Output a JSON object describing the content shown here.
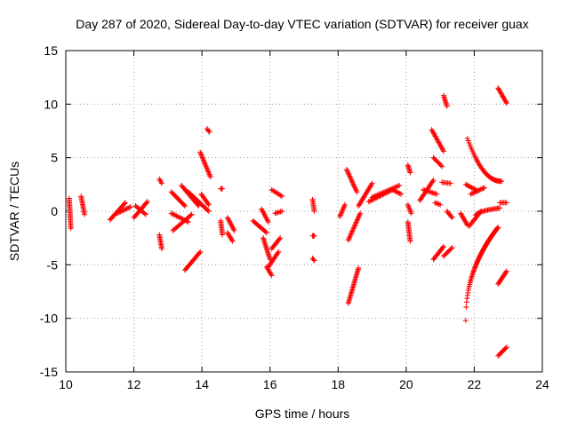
{
  "chart_data": {
    "type": "scatter",
    "title": "Day 287 of 2020, Sidereal Day-to-day VTEC variation (SDTVAR) for receiver guax",
    "xlabel": "GPS time / hours",
    "ylabel": "SDTVAR / TECUs",
    "xlim": [
      10,
      24
    ],
    "ylim": [
      -15,
      15
    ],
    "xticks": [
      10,
      12,
      14,
      16,
      18,
      20,
      22,
      24
    ],
    "yticks": [
      -15,
      -10,
      -5,
      0,
      5,
      10,
      15
    ],
    "grid": true,
    "marker": "+",
    "series_color": "#ff0000",
    "segments": [
      {
        "x0": 10.1,
        "x1": 10.15,
        "y0": 1.2,
        "y1": -1.6
      },
      {
        "x0": 10.45,
        "x1": 10.55,
        "y0": 1.4,
        "y1": -0.3
      },
      {
        "x0": 11.3,
        "x1": 11.75,
        "y0": -0.8,
        "y1": 0.8
      },
      {
        "x0": 11.5,
        "x1": 11.9,
        "y0": -0.2,
        "y1": 0.4
      },
      {
        "x0": 12.0,
        "x1": 12.4,
        "y0": -0.6,
        "y1": 0.9
      },
      {
        "x0": 12.05,
        "x1": 12.35,
        "y0": 0.5,
        "y1": -0.3
      },
      {
        "x0": 12.75,
        "x1": 12.82,
        "y0": 3.0,
        "y1": 2.6
      },
      {
        "x0": 12.75,
        "x1": 12.82,
        "y0": -2.2,
        "y1": -3.5
      },
      {
        "x0": 13.1,
        "x1": 13.5,
        "y0": 1.8,
        "y1": 0.5
      },
      {
        "x0": 13.1,
        "x1": 13.6,
        "y0": -0.2,
        "y1": -1.0
      },
      {
        "x0": 13.15,
        "x1": 13.7,
        "y0": -1.8,
        "y1": -0.3
      },
      {
        "x0": 13.4,
        "x1": 13.9,
        "y0": 2.4,
        "y1": 0.5
      },
      {
        "x0": 13.6,
        "x1": 14.2,
        "y0": 1.8,
        "y1": 0.0
      },
      {
        "x0": 13.5,
        "x1": 13.95,
        "y0": -5.5,
        "y1": -3.8
      },
      {
        "x0": 13.95,
        "x1": 14.25,
        "y0": 5.5,
        "y1": 3.2
      },
      {
        "x0": 13.98,
        "x1": 14.2,
        "y0": 1.6,
        "y1": 0.6
      },
      {
        "x0": 14.15,
        "x1": 14.22,
        "y0": 7.7,
        "y1": 7.4
      },
      {
        "x0": 14.55,
        "x1": 14.6,
        "y0": 2.1,
        "y1": 2.1
      },
      {
        "x0": 14.55,
        "x1": 14.6,
        "y0": -0.9,
        "y1": -2.2
      },
      {
        "x0": 14.75,
        "x1": 14.95,
        "y0": -0.6,
        "y1": -1.8
      },
      {
        "x0": 14.75,
        "x1": 14.9,
        "y0": -2.0,
        "y1": -2.8
      },
      {
        "x0": 15.5,
        "x1": 15.9,
        "y0": -0.9,
        "y1": -2.0
      },
      {
        "x0": 15.75,
        "x1": 15.95,
        "y0": 0.2,
        "y1": -1.0
      },
      {
        "x0": 15.8,
        "x1": 16.0,
        "y0": -2.5,
        "y1": -4.5
      },
      {
        "x0": 15.9,
        "x1": 16.05,
        "y0": -5.2,
        "y1": -6.0
      },
      {
        "x0": 15.95,
        "x1": 16.25,
        "y0": -5.2,
        "y1": -3.8
      },
      {
        "x0": 16.05,
        "x1": 16.3,
        "y0": -3.5,
        "y1": -2.5
      },
      {
        "x0": 16.05,
        "x1": 16.35,
        "y0": 2.0,
        "y1": 1.4
      },
      {
        "x0": 16.15,
        "x1": 16.35,
        "y0": -0.2,
        "y1": 0.0
      },
      {
        "x0": 17.25,
        "x1": 17.3,
        "y0": 1.1,
        "y1": 0.0
      },
      {
        "x0": 17.25,
        "x1": 17.3,
        "y0": -2.3,
        "y1": -2.3
      },
      {
        "x0": 17.25,
        "x1": 17.3,
        "y0": -4.4,
        "y1": -4.6
      },
      {
        "x0": 18.05,
        "x1": 18.2,
        "y0": -0.5,
        "y1": 0.6
      },
      {
        "x0": 18.25,
        "x1": 18.55,
        "y0": 3.9,
        "y1": 1.8
      },
      {
        "x0": 18.3,
        "x1": 18.6,
        "y0": -8.6,
        "y1": -5.3
      },
      {
        "x0": 18.3,
        "x1": 18.65,
        "y0": -2.7,
        "y1": -0.2
      },
      {
        "x0": 18.6,
        "x1": 19.0,
        "y0": 0.5,
        "y1": 2.6
      },
      {
        "x0": 18.9,
        "x1": 19.6,
        "y0": 0.9,
        "y1": 2.0
      },
      {
        "x0": 19.0,
        "x1": 19.8,
        "y0": 1.3,
        "y1": 2.4
      },
      {
        "x0": 19.6,
        "x1": 19.85,
        "y0": 2.0,
        "y1": 1.6
      },
      {
        "x0": 20.05,
        "x1": 20.12,
        "y0": 4.3,
        "y1": 3.6
      },
      {
        "x0": 20.05,
        "x1": 20.15,
        "y0": 0.6,
        "y1": -0.2
      },
      {
        "x0": 20.05,
        "x1": 20.12,
        "y0": -1.0,
        "y1": -2.8
      },
      {
        "x0": 20.4,
        "x1": 20.8,
        "y0": 1.0,
        "y1": 2.9
      },
      {
        "x0": 20.5,
        "x1": 20.9,
        "y0": 2.0,
        "y1": 1.6
      },
      {
        "x0": 20.75,
        "x1": 21.1,
        "y0": 7.6,
        "y1": 5.6
      },
      {
        "x0": 20.8,
        "x1": 21.05,
        "y0": 5.0,
        "y1": 4.2
      },
      {
        "x0": 20.8,
        "x1": 21.1,
        "y0": -4.5,
        "y1": -3.3
      },
      {
        "x0": 20.85,
        "x1": 21.0,
        "y0": 0.8,
        "y1": 0.6
      },
      {
        "x0": 21.1,
        "x1": 21.2,
        "y0": 10.8,
        "y1": 9.8
      },
      {
        "x0": 21.05,
        "x1": 21.3,
        "y0": 2.7,
        "y1": 2.6
      },
      {
        "x0": 21.1,
        "x1": 21.35,
        "y0": -4.2,
        "y1": -3.4
      },
      {
        "x0": 21.2,
        "x1": 21.35,
        "y0": 0.0,
        "y1": -0.6
      },
      {
        "x0": 21.6,
        "x1": 21.8,
        "y0": -0.2,
        "y1": -1.3
      },
      {
        "x0": 21.75,
        "x1": 22.1,
        "y0": 2.5,
        "y1": 1.9
      },
      {
        "x0": 21.85,
        "x1": 22.2,
        "y0": -1.4,
        "y1": 0.0
      },
      {
        "x0": 21.9,
        "x1": 22.3,
        "y0": 1.6,
        "y1": 2.2
      }
    ],
    "curves": [
      {
        "x0": 21.8,
        "x1": 22.8,
        "y0": 6.8,
        "y1": 2.8,
        "shape": "decay"
      },
      {
        "x0": 21.75,
        "x1": 22.7,
        "y0": -10.2,
        "y1": -1.5,
        "shape": "rise"
      },
      {
        "x0": 22.0,
        "x1": 22.75,
        "y0": -0.8,
        "y1": 0.3,
        "shape": "flat"
      },
      {
        "x0": 22.7,
        "x1": 22.95,
        "y0": 11.5,
        "y1": 10.1,
        "shape": "linear"
      },
      {
        "x0": 22.7,
        "x1": 22.95,
        "y0": -13.5,
        "y1": -12.7,
        "shape": "linear"
      },
      {
        "x0": 22.7,
        "x1": 22.95,
        "y0": -6.8,
        "y1": -5.6,
        "shape": "linear"
      },
      {
        "x0": 22.75,
        "x1": 22.95,
        "y0": 0.8,
        "y1": 0.8,
        "shape": "linear"
      }
    ]
  }
}
